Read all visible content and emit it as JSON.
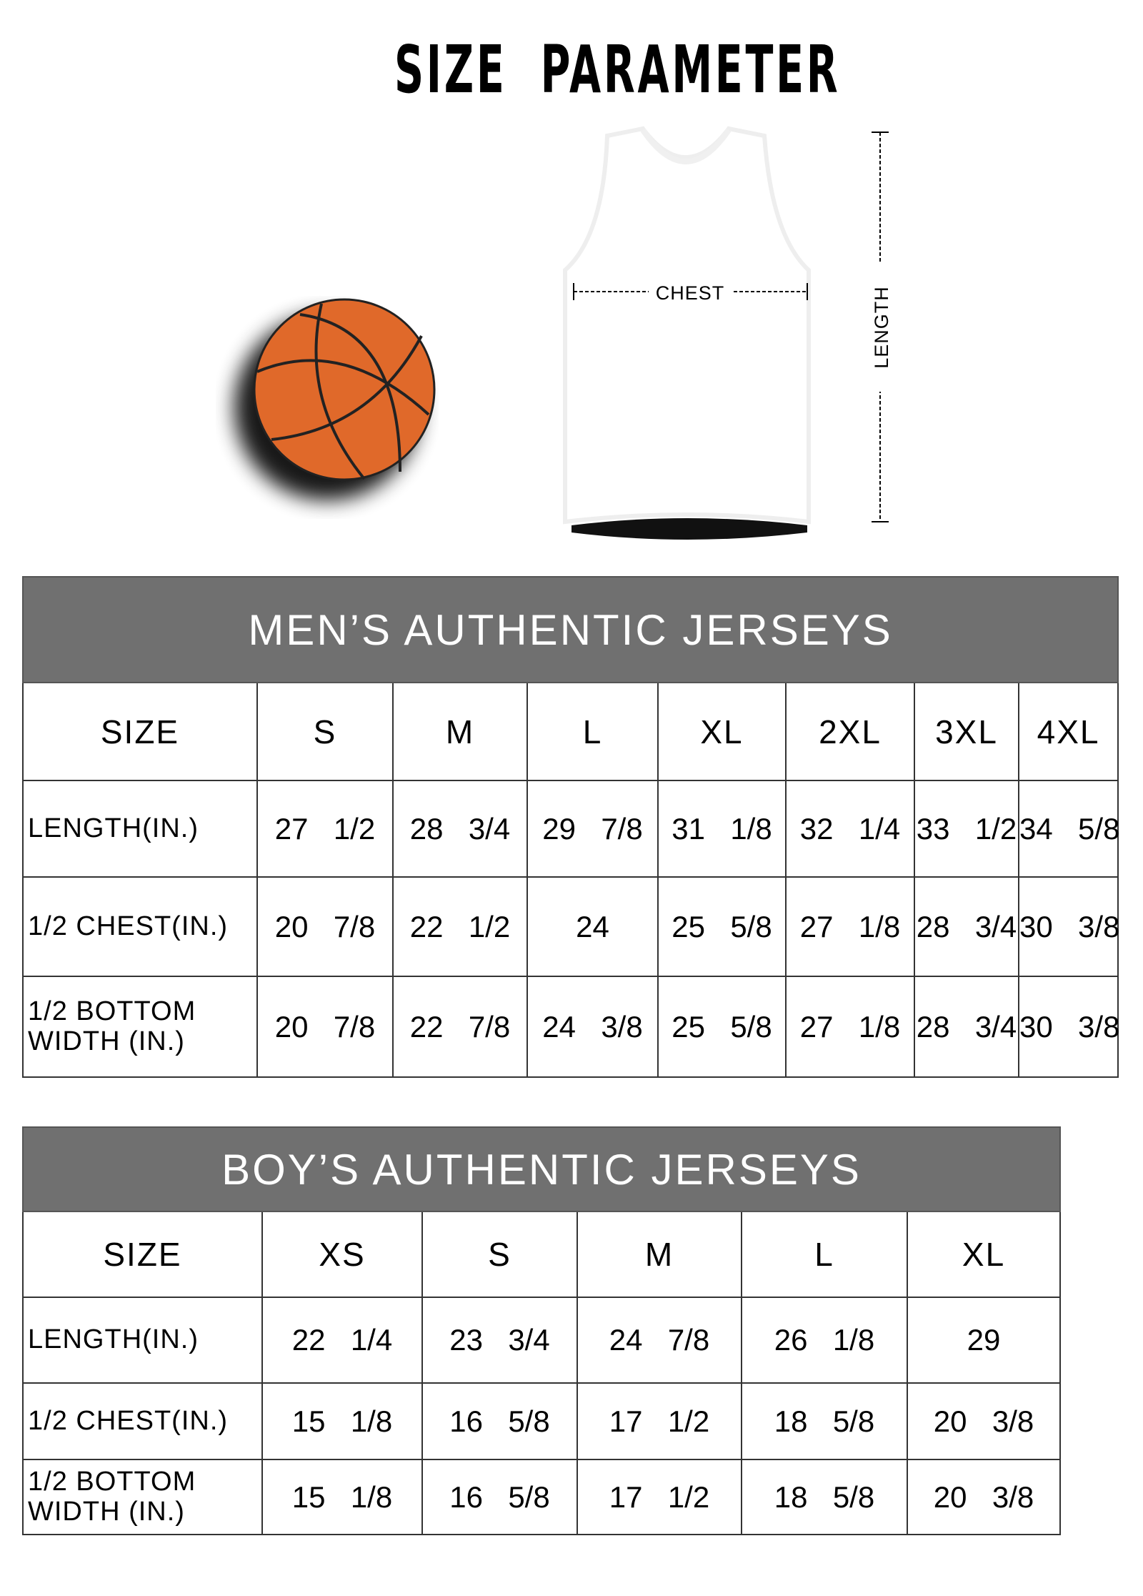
{
  "title": "SIZE  PARAMETER",
  "diagram": {
    "chest_label": "CHEST",
    "length_label": "LENGTH",
    "ball_color": "#E0692A"
  },
  "mens": {
    "title": "MEN’S AUTHENTIC JERSEYS",
    "header_color": "#707070",
    "size_label": "SIZE",
    "sizes": [
      "S",
      "M",
      "L",
      "XL",
      "2XL",
      "3XL",
      "4XL"
    ],
    "rows": [
      {
        "label": "LENGTH(IN.)",
        "values": [
          "27  1/2",
          "28  3/4",
          "29  7/8",
          "31  1/8",
          "32  1/4",
          "33  1/2",
          "34  5/8"
        ]
      },
      {
        "label": "1/2 CHEST(IN.)",
        "values": [
          "20  7/8",
          "22  1/2",
          "24",
          "25  5/8",
          "27  1/8",
          "28  3/4",
          "30  3/8"
        ]
      },
      {
        "label": "1/2 BOTTOM WIDTH  (IN.)",
        "values": [
          "20  7/8",
          "22  7/8",
          "24  3/8",
          "25  5/8",
          "27  1/8",
          "28  3/4",
          "30  3/8"
        ]
      }
    ]
  },
  "boys": {
    "title": "BOY’S AUTHENTIC JERSEYS",
    "size_label": "SIZE",
    "sizes": [
      "XS",
      "S",
      "M",
      "L",
      "XL"
    ],
    "rows": [
      {
        "label": "LENGTH(IN.)",
        "values": [
          "22  1/4",
          "23  3/4",
          "24  7/8",
          "26  1/8",
          "29"
        ]
      },
      {
        "label": "1/2 CHEST(IN.)",
        "values": [
          "15  1/8",
          "16  5/8",
          "17  1/2",
          "18  5/8",
          "20  3/8"
        ]
      },
      {
        "label": "1/2 BOTTOM WIDTH  (IN.)",
        "values": [
          "15  1/8",
          "16  5/8",
          "17  1/2",
          "18  5/8",
          "20  3/8"
        ]
      }
    ]
  }
}
